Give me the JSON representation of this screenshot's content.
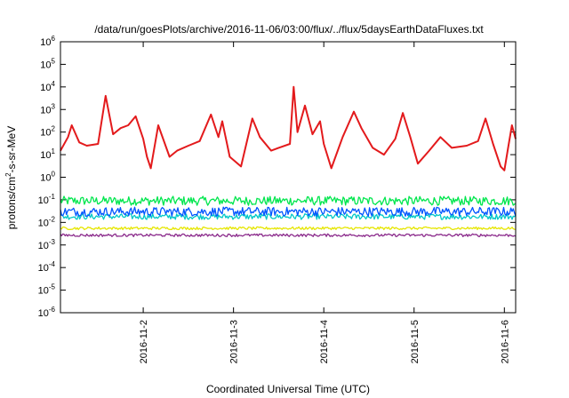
{
  "chart_data": {
    "type": "line",
    "title": "/data/run/goesPlots/archive/2016-11-06/03:00/flux/../flux/5daysEarthDataFluxes.txt",
    "xlabel": "Coordinated Universal Time (UTC)",
    "ylabel_parts": [
      "protons/cm",
      "2",
      "-s-sr-MeV"
    ],
    "y_scale": "log",
    "ylim": [
      1e-06,
      1000000.0
    ],
    "xlim": [
      "2016-11-01 02:00",
      "2016-11-06 03:00"
    ],
    "grid": false,
    "legend": "none",
    "y_ticks": [
      {
        "base": "10",
        "exp": "-6",
        "value": 1e-06
      },
      {
        "base": "10",
        "exp": "-5",
        "value": 1e-05
      },
      {
        "base": "10",
        "exp": "-4",
        "value": 0.0001
      },
      {
        "base": "10",
        "exp": "-3",
        "value": 0.001
      },
      {
        "base": "10",
        "exp": "-2",
        "value": 0.01
      },
      {
        "base": "10",
        "exp": "-1",
        "value": 0.1
      },
      {
        "base": "10",
        "exp": "0",
        "value": 1
      },
      {
        "base": "10",
        "exp": "1",
        "value": 10
      },
      {
        "base": "10",
        "exp": "2",
        "value": 100
      },
      {
        "base": "10",
        "exp": "3",
        "value": 1000
      },
      {
        "base": "10",
        "exp": "4",
        "value": 10000
      },
      {
        "base": "10",
        "exp": "5",
        "value": 100000
      },
      {
        "base": "10",
        "exp": "6",
        "value": 1000000
      }
    ],
    "x_ticks": [
      {
        "label": "2016-11-2",
        "value": "2016-11-02 00:00"
      },
      {
        "label": "2016-11-3",
        "value": "2016-11-03 00:00"
      },
      {
        "label": "2016-11-4",
        "value": "2016-11-04 00:00"
      },
      {
        "label": "2016-11-5",
        "value": "2016-11-05 00:00"
      },
      {
        "label": "2016-11-6",
        "value": "2016-11-06 00:00"
      }
    ],
    "series": [
      {
        "color": "#e31a1c",
        "width": 2,
        "x": [
          "2016-11-01 02:00",
          "2016-11-01 04:00",
          "2016-11-01 05:00",
          "2016-11-01 07:00",
          "2016-11-01 09:00",
          "2016-11-01 12:00",
          "2016-11-01 14:00",
          "2016-11-01 16:00",
          "2016-11-01 18:00",
          "2016-11-01 20:00",
          "2016-11-01 22:00",
          "2016-11-02 00:00",
          "2016-11-02 01:00",
          "2016-11-02 02:00",
          "2016-11-02 04:00",
          "2016-11-02 07:00",
          "2016-11-02 09:00",
          "2016-11-02 12:00",
          "2016-11-02 15:00",
          "2016-11-02 18:00",
          "2016-11-02 20:00",
          "2016-11-02 21:00",
          "2016-11-02 23:00",
          "2016-11-03 02:00",
          "2016-11-03 05:00",
          "2016-11-03 07:00",
          "2016-11-03 10:00",
          "2016-11-03 12:00",
          "2016-11-03 15:00",
          "2016-11-03 16:00",
          "2016-11-03 17:00",
          "2016-11-03 19:00",
          "2016-11-03 21:00",
          "2016-11-03 23:00",
          "2016-11-04 00:00",
          "2016-11-04 02:00",
          "2016-11-04 05:00",
          "2016-11-04 08:00",
          "2016-11-04 10:00",
          "2016-11-04 13:00",
          "2016-11-04 16:00",
          "2016-11-04 19:00",
          "2016-11-04 21:00",
          "2016-11-04 23:00",
          "2016-11-05 01:00",
          "2016-11-05 04:00",
          "2016-11-05 07:00",
          "2016-11-05 10:00",
          "2016-11-05 14:00",
          "2016-11-05 17:00",
          "2016-11-05 19:00",
          "2016-11-05 21:00",
          "2016-11-05 23:00",
          "2016-11-06 00:00",
          "2016-11-06 01:00",
          "2016-11-06 02:00",
          "2016-11-06 03:00"
        ],
        "y": [
          15,
          60,
          200,
          35,
          25,
          30,
          4000,
          80,
          150,
          200,
          500,
          50,
          8,
          2.5,
          200,
          8,
          15,
          25,
          40,
          600,
          60,
          300,
          8,
          3,
          400,
          60,
          15,
          20,
          30,
          10000,
          100,
          1500,
          80,
          300,
          30,
          2.5,
          60,
          800,
          150,
          20,
          10,
          50,
          700,
          60,
          4,
          15,
          60,
          20,
          25,
          40,
          400,
          30,
          3,
          2,
          20,
          200,
          50
        ]
      },
      {
        "color": "#00e64d",
        "width": 1.3,
        "y_const": 0.09,
        "noise": 0.4
      },
      {
        "color": "#00c8c8",
        "width": 1.3,
        "y_const": 0.018,
        "noise": 0.25
      },
      {
        "color": "#0055ff",
        "width": 1.3,
        "y_const": 0.03,
        "noise": 0.4
      },
      {
        "color": "#e6e600",
        "width": 1.3,
        "y_const": 0.0055,
        "noise": 0.12
      },
      {
        "color": "#8b2a8b",
        "width": 1.3,
        "y_const": 0.0027,
        "noise": 0.12
      }
    ]
  }
}
